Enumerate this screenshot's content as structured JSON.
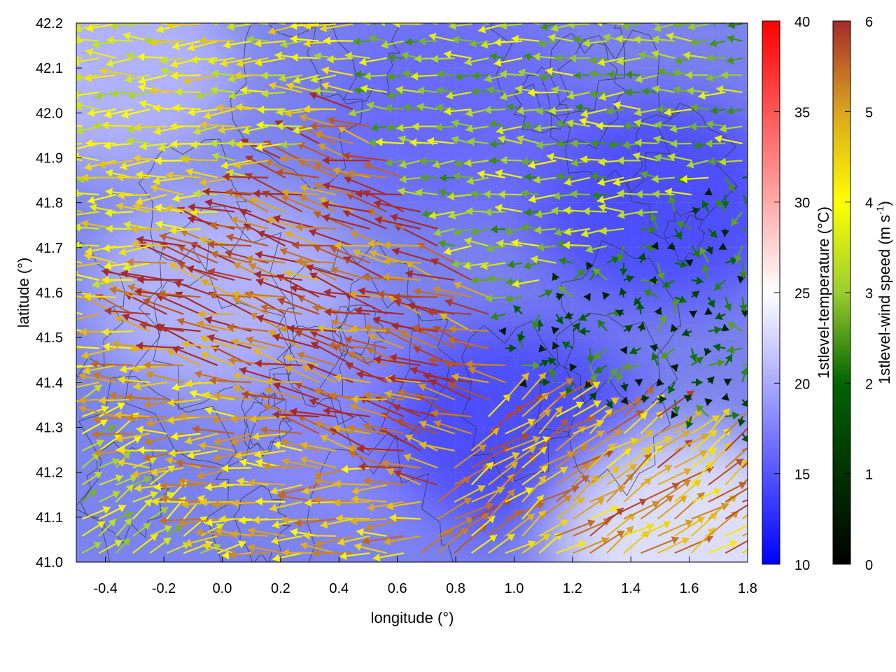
{
  "chart_data": {
    "type": "heatmap",
    "title": "",
    "xlabel": "longitude (°)",
    "ylabel": "latitude (°)",
    "xlim": [
      -0.5,
      1.8
    ],
    "ylim": [
      41.0,
      42.2
    ],
    "xticks": [
      "-0.4",
      "-0.2",
      "0.0",
      "0.2",
      "0.4",
      "0.6",
      "0.8",
      "1.0",
      "1.2",
      "1.4",
      "1.6",
      "1.8"
    ],
    "yticks": [
      "41.0",
      "41.1",
      "41.2",
      "41.3",
      "41.4",
      "41.5",
      "41.6",
      "41.7",
      "41.8",
      "41.9",
      "42.0",
      "42.1",
      "42.2"
    ],
    "grid": true,
    "temperature_colorbar": {
      "label": "1stlevel-temperature (°C)",
      "range": [
        10,
        40
      ],
      "ticks": [
        "10",
        "15",
        "20",
        "25",
        "30",
        "35",
        "40"
      ],
      "colors": [
        "#0000ff",
        "#ffffff",
        "#ff0000"
      ]
    },
    "wind_colorbar": {
      "label_main": "1stlevel-wind speed (m s",
      "label_sup": "-1",
      "label_end": ")",
      "range": [
        0,
        6
      ],
      "ticks": [
        "0",
        "1",
        "2",
        "3",
        "4",
        "5",
        "6"
      ],
      "colors": [
        "#000000",
        "#006400",
        "#9acd32",
        "#ffff00",
        "#daa520",
        "#a52a2a"
      ]
    },
    "temperature_field": {
      "units": "°C",
      "regions": [
        {
          "lon": -0.4,
          "lat": 42.1,
          "value": 21
        },
        {
          "lon": 0.0,
          "lat": 41.6,
          "value": 21
        },
        {
          "lon": 0.5,
          "lat": 41.3,
          "value": 18
        },
        {
          "lon": 1.0,
          "lat": 41.3,
          "value": 14
        },
        {
          "lon": 1.5,
          "lat": 41.8,
          "value": 14
        },
        {
          "lon": 1.6,
          "lat": 41.05,
          "value": 24
        },
        {
          "lon": 0.8,
          "lat": 42.0,
          "value": 16
        }
      ]
    },
    "wind_field": {
      "units": "m s-1",
      "regions": [
        {
          "lon": -0.4,
          "lat": 42.0,
          "direction": "westward",
          "speed": 3.5
        },
        {
          "lon": 0.3,
          "lat": 41.5,
          "direction": "west-northwest",
          "speed": 5.5
        },
        {
          "lon": 0.0,
          "lat": 41.2,
          "direction": "westward",
          "speed": 4.5
        },
        {
          "lon": 1.3,
          "lat": 41.9,
          "direction": "westward",
          "speed": 2.5
        },
        {
          "lon": 1.6,
          "lat": 41.6,
          "direction": "variable",
          "speed": 1.0
        },
        {
          "lon": 1.4,
          "lat": 41.05,
          "direction": "northeastward",
          "speed": 4.8
        },
        {
          "lon": -0.3,
          "lat": 41.05,
          "direction": "northeastward",
          "speed": 3.0
        }
      ]
    }
  }
}
